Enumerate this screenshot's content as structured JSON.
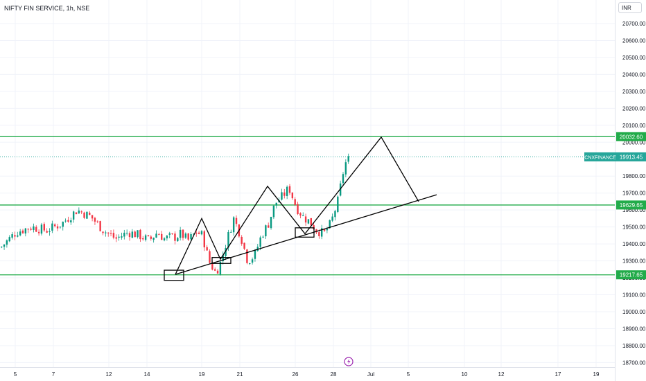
{
  "header": {
    "symbol_title": "NIFTY FIN SERVICE, 1h, NSE",
    "currency_button": "INR"
  },
  "colors": {
    "up": "#089981",
    "down": "#f23645",
    "level_line": "#22ab4a",
    "drawing": "#000000",
    "price_line": "#26a69a"
  },
  "chart_data": {
    "type": "candlestick",
    "title": "NIFTY FIN SERVICE, 1h, NSE",
    "ylim": [
      18680,
      20800
    ],
    "y_ticks": [
      18700,
      18800,
      18900,
      19000,
      19100,
      19200,
      19300,
      19400,
      19500,
      19600,
      19700,
      19800,
      20000,
      20100,
      20200,
      20300,
      20400,
      20500,
      20600,
      20700
    ],
    "x_tick_labels": [
      "5",
      "7",
      "12",
      "14",
      "19",
      "21",
      "26",
      "28",
      "Jul",
      "5",
      "10",
      "12",
      "17",
      "19"
    ],
    "horizontal_levels": [
      {
        "price": 20032.6,
        "label": "20032.60"
      },
      {
        "price": 19629.65,
        "label": "19629.65"
      },
      {
        "price": 19217.65,
        "label": "19217.65"
      }
    ],
    "current_price": {
      "symbol": "CNXFINANCE",
      "price": 19913.45,
      "label": "19913.45"
    },
    "close_path": [
      19380,
      19470,
      19500,
      19480,
      19520,
      19600,
      19560,
      19480,
      19430,
      19470,
      19450,
      19420,
      19470,
      19430,
      19440,
      19440,
      19460,
      19420,
      19470,
      19450,
      19300,
      19230,
      19300,
      19420,
      19550,
      19450,
      19300,
      19330,
      19450,
      19520,
      19640,
      19680,
      19730,
      19620,
      19560,
      19530,
      19480,
      19460,
      19520,
      19650,
      19870,
      19920,
      19913
    ],
    "trendline": {
      "start_price": 19220,
      "end_price": 19690
    },
    "projection_path": [
      19220,
      19550,
      19310,
      19740,
      19460,
      20030,
      19650
    ],
    "highlight_boxes": [
      {
        "low": 19185,
        "high": 19245
      },
      {
        "low": 19285,
        "high": 19320
      },
      {
        "low": 19440,
        "high": 19495
      }
    ]
  }
}
